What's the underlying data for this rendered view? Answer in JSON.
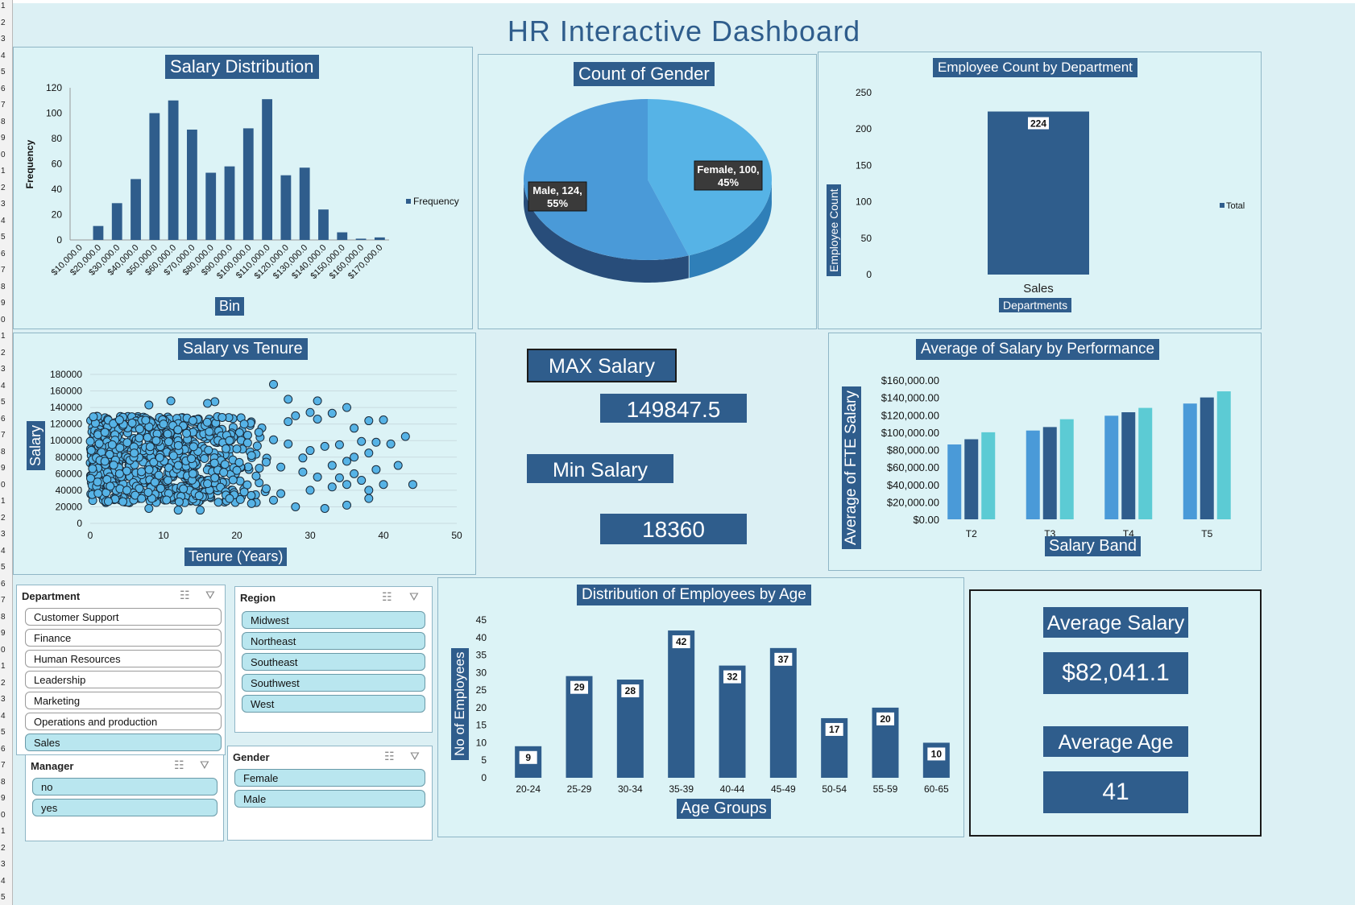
{
  "dashboard_title": "HR Interactive Dashboard",
  "row_numbers": [
    "1",
    "2",
    "3",
    "4",
    "5",
    "6",
    "7",
    "8",
    "9",
    "0",
    "1",
    "2",
    "3",
    "4",
    "5",
    "6",
    "7",
    "8",
    "9",
    "0",
    "1",
    "2",
    "3",
    "4",
    "5",
    "6",
    "7",
    "8",
    "9",
    "0",
    "1",
    "2",
    "3",
    "4",
    "5",
    "6",
    "7",
    "8",
    "9",
    "0",
    "1",
    "2",
    "3",
    "4",
    "5",
    "6",
    "7",
    "8",
    "9",
    "0",
    "1",
    "2",
    "3",
    "4",
    "5"
  ],
  "colors": {
    "dark_blue": "#2f5d8c",
    "mid_blue": "#4a9ad8",
    "light_blue": "#56b3e6",
    "teal": "#5ccbd4",
    "panel_bg": "#dcf3f6"
  },
  "kpi": {
    "max_salary_label": "MAX Salary",
    "max_salary_value": "149847.5",
    "min_salary_label": "Min Salary",
    "min_salary_value": "18360",
    "avg_salary_label": "Average Salary",
    "avg_salary_value": "$82,041.1",
    "avg_age_label": "Average Age",
    "avg_age_value": "41"
  },
  "slicers": {
    "department": {
      "title": "Department",
      "items": [
        "Customer Support",
        "Finance",
        "Human Resources",
        "Leadership",
        "Marketing",
        "Operations and production",
        "Sales"
      ],
      "selected": [
        "Sales"
      ]
    },
    "region": {
      "title": "Region",
      "items": [
        "Midwest",
        "Northeast",
        "Southeast",
        "Southwest",
        "West"
      ],
      "selected": [
        "Midwest",
        "Northeast",
        "Southeast",
        "Southwest",
        "West"
      ]
    },
    "manager": {
      "title": "Manager",
      "items": [
        "no",
        "yes"
      ],
      "selected": [
        "no",
        "yes"
      ]
    },
    "gender": {
      "title": "Gender",
      "items": [
        "Female",
        "Male"
      ],
      "selected": [
        "Female",
        "Male"
      ]
    },
    "icons": [
      "multi-select-icon",
      "clear-filter-icon"
    ]
  },
  "chart_data": [
    {
      "id": "salary_distribution",
      "type": "bar",
      "title": "Salary Distribution",
      "xlabel": "Bin",
      "ylabel": "Frequency",
      "legend": "Frequency",
      "legend_position": "right",
      "ylim": [
        0,
        120
      ],
      "yticks": [
        "0",
        "20",
        "40",
        "60",
        "80",
        "100",
        "120"
      ],
      "categories": [
        "$10,000.0",
        "$20,000.0",
        "$30,000.0",
        "$40,000.0",
        "$50,000.0",
        "$60,000.0",
        "$70,000.0",
        "$80,000.0",
        "$90,000.0",
        "$100,000.0",
        "$110,000.0",
        "$120,000.0",
        "$130,000.0",
        "$140,000.0",
        "$150,000.0",
        "$160,000.0",
        "$170,000.0"
      ],
      "values": [
        0,
        11,
        29,
        48,
        100,
        110,
        87,
        53,
        58,
        88,
        111,
        51,
        57,
        24,
        6,
        1,
        2
      ]
    },
    {
      "id": "count_of_gender",
      "type": "pie",
      "title": "Count of Gender",
      "slices": [
        {
          "label": "Female, 100, 45%",
          "name": "Female",
          "value": 100,
          "percent": 45
        },
        {
          "label": "Male, 124, 55%",
          "name": "Male",
          "value": 124,
          "percent": 55
        }
      ]
    },
    {
      "id": "employee_count_by_department",
      "type": "bar",
      "title": "Employee Count by Department",
      "xlabel": "Departments",
      "ylabel": "Employee Count",
      "legend": "Total",
      "legend_position": "right",
      "ylim": [
        0,
        250
      ],
      "yticks": [
        "0",
        "50",
        "100",
        "150",
        "200",
        "250"
      ],
      "categories": [
        "Sales"
      ],
      "values": [
        224
      ],
      "data_labels": [
        "224"
      ]
    },
    {
      "id": "salary_vs_tenure",
      "type": "scatter",
      "title": "Salary vs Tenure",
      "xlabel": "Tenure (Years)",
      "ylabel": "Salary",
      "xlim": [
        0,
        50
      ],
      "ylim": [
        0,
        180000
      ],
      "xticks": [
        "0",
        "10",
        "20",
        "30",
        "40",
        "50"
      ],
      "yticks": [
        "0",
        "20000",
        "40000",
        "60000",
        "80000",
        "100000",
        "120000",
        "140000",
        "160000",
        "180000"
      ],
      "points": [
        [
          25,
          168000
        ],
        [
          27,
          150000
        ],
        [
          11,
          148000
        ],
        [
          17,
          147000
        ],
        [
          31,
          148000
        ],
        [
          8,
          143000
        ],
        [
          16,
          145000
        ],
        [
          35,
          140000
        ],
        [
          30,
          134000
        ],
        [
          33,
          133000
        ],
        [
          40,
          125000
        ],
        [
          38,
          124000
        ],
        [
          31,
          126000
        ],
        [
          27,
          123000
        ],
        [
          28,
          130000
        ],
        [
          36,
          115000
        ],
        [
          43,
          105000
        ],
        [
          41,
          96000
        ],
        [
          37,
          99000
        ],
        [
          39,
          98000
        ],
        [
          34,
          95000
        ],
        [
          32,
          93000
        ],
        [
          36,
          80000
        ],
        [
          38,
          85000
        ],
        [
          35,
          75000
        ],
        [
          33,
          70000
        ],
        [
          39,
          65000
        ],
        [
          42,
          70000
        ],
        [
          44,
          47000
        ],
        [
          40,
          47000
        ],
        [
          38,
          40000
        ],
        [
          35,
          47000
        ],
        [
          38,
          30000
        ],
        [
          35,
          22000
        ],
        [
          32,
          18000
        ],
        [
          28,
          20000
        ],
        [
          25,
          28000
        ],
        [
          22,
          24000
        ],
        [
          19,
          30000
        ],
        [
          15,
          16000
        ],
        [
          12,
          16000
        ],
        [
          8,
          18000
        ],
        [
          34,
          55000
        ],
        [
          36,
          60000
        ],
        [
          29,
          62000
        ],
        [
          31,
          56000
        ],
        [
          33,
          44000
        ],
        [
          30,
          40000
        ],
        [
          26,
          36000
        ],
        [
          24,
          42000
        ],
        [
          21,
          38000
        ],
        [
          37,
          52000
        ],
        [
          30,
          88000
        ],
        [
          27,
          96000
        ],
        [
          25,
          101000
        ],
        [
          23,
          110000
        ],
        [
          29,
          79000
        ],
        [
          26,
          68000
        ],
        [
          24,
          74000
        ],
        [
          22,
          82000
        ],
        [
          20,
          90000
        ],
        [
          19,
          100000
        ],
        [
          21,
          120000
        ],
        [
          18,
          128000
        ],
        [
          20,
          64000
        ],
        [
          17,
          55000
        ],
        [
          16,
          48000
        ],
        [
          14,
          60000
        ],
        [
          12,
          70000
        ],
        [
          10,
          120000
        ],
        [
          9,
          100000
        ],
        [
          6,
          85000
        ],
        [
          3,
          95000
        ],
        [
          2,
          75000
        ],
        [
          4,
          60000
        ],
        [
          1,
          50000
        ],
        [
          5,
          40000
        ],
        [
          7,
          30000
        ],
        [
          2,
          110000
        ],
        [
          4,
          125000
        ]
      ],
      "dense_cluster": {
        "x_range": [
          0,
          25
        ],
        "y_range": [
          25000,
          130000
        ],
        "count": 800
      }
    },
    {
      "id": "average_salary_by_performance",
      "type": "bar",
      "title": "Average of Salary by Performance",
      "xlabel": "Salary Band",
      "ylabel": "Average of FTE Salary",
      "ylim": [
        0,
        160000
      ],
      "yticks": [
        "$0.00",
        "$20,000.00",
        "$40,000.00",
        "$60,000.00",
        "$80,000.00",
        "$100,000.00",
        "$120,000.00",
        "$140,000.00",
        "$160,000.00"
      ],
      "categories": [
        "T2",
        "T3",
        "T4",
        "T5"
      ],
      "series": [
        {
          "values": [
            86000,
            102000,
            119000,
            133000
          ],
          "color": "#4a9ad8"
        },
        {
          "values": [
            92000,
            106000,
            123000,
            140000
          ],
          "color": "#2f5d8c"
        },
        {
          "values": [
            100000,
            115000,
            128000,
            147000
          ],
          "color": "#5ccbd4"
        }
      ]
    },
    {
      "id": "distribution_by_age",
      "type": "bar",
      "title": "Distribution of Employees by Age",
      "xlabel": "Age Groups",
      "ylabel": "No of Employees",
      "ylim": [
        0,
        45
      ],
      "yticks": [
        "0",
        "5",
        "10",
        "15",
        "20",
        "25",
        "30",
        "35",
        "40",
        "45"
      ],
      "categories": [
        "20-24",
        "25-29",
        "30-34",
        "35-39",
        "40-44",
        "45-49",
        "50-54",
        "55-59",
        "60-65"
      ],
      "values": [
        9,
        29,
        28,
        42,
        32,
        37,
        17,
        20,
        10
      ],
      "data_labels": [
        "9",
        "29",
        "28",
        "42",
        "32",
        "37",
        "17",
        "20",
        "10"
      ]
    }
  ]
}
